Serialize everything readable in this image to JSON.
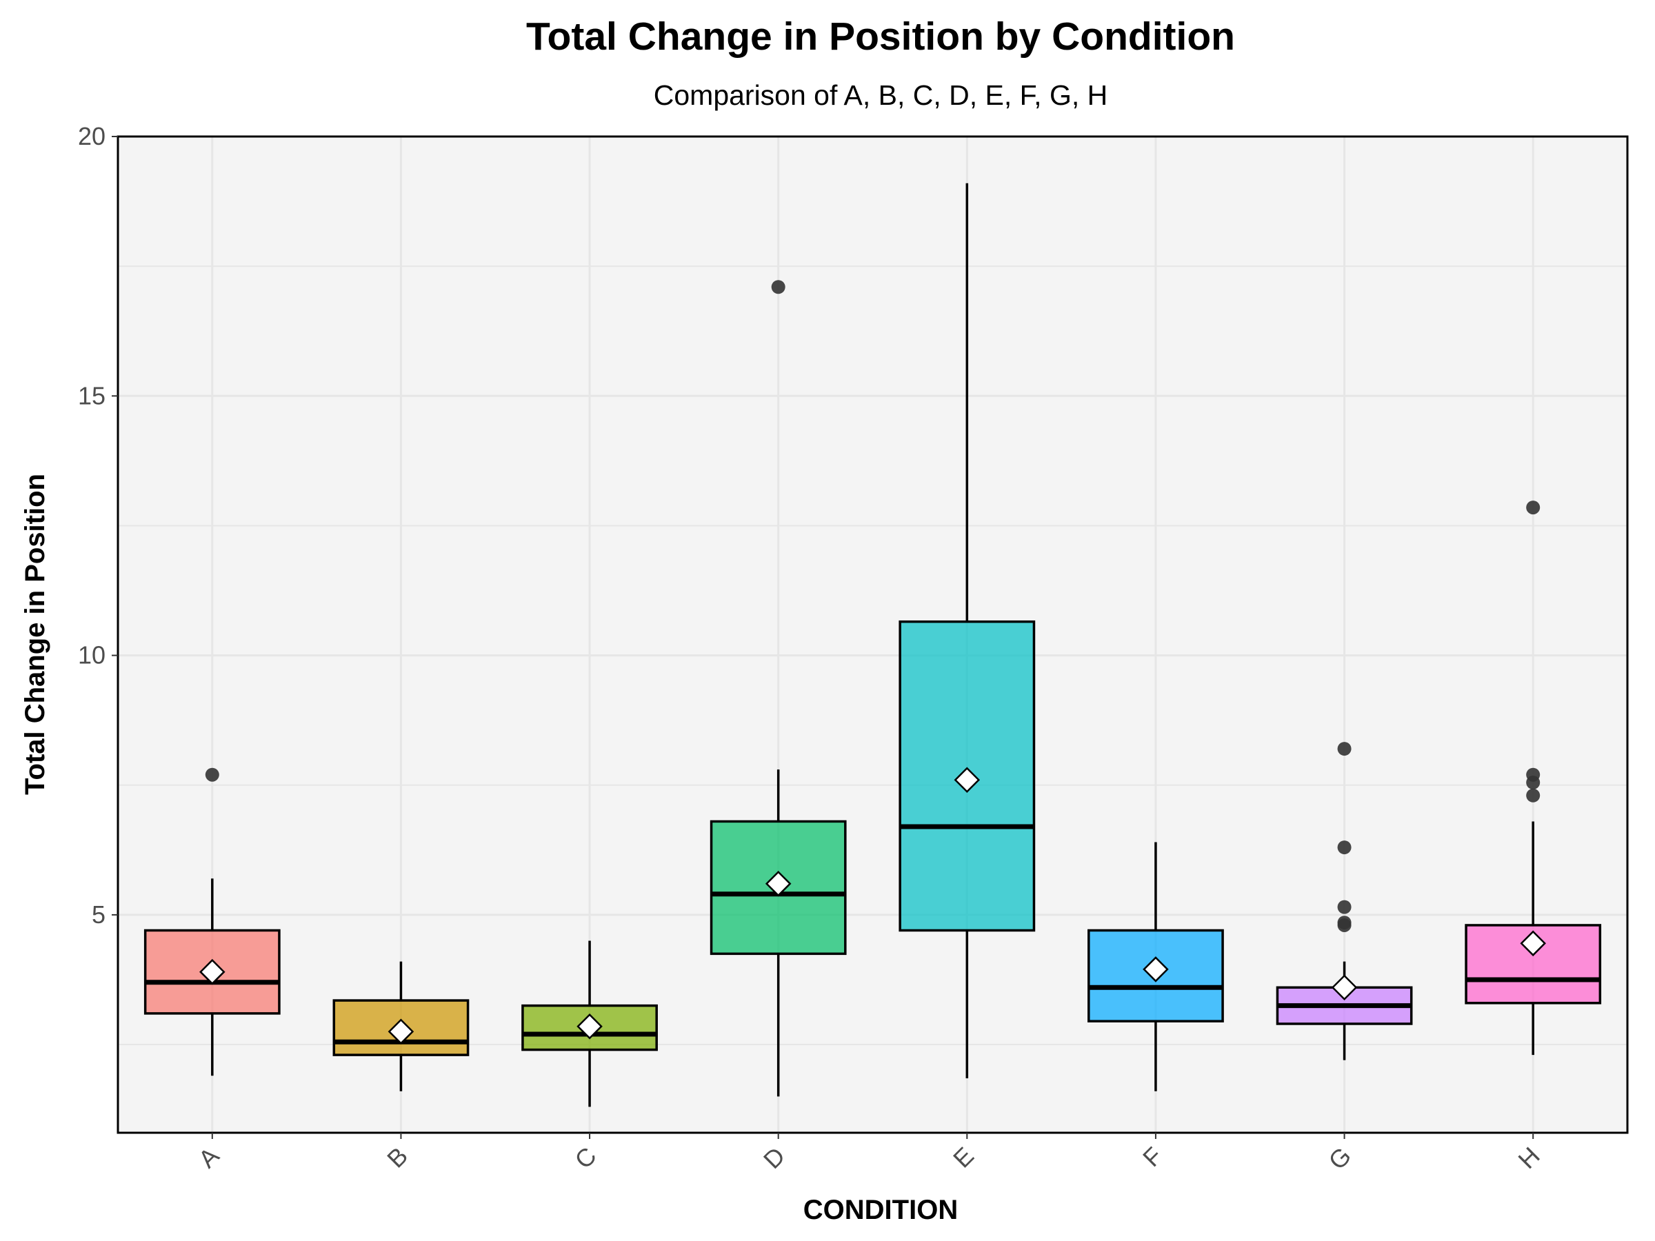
{
  "chart_data": {
    "type": "box",
    "title": "Total Change in Position by Condition",
    "subtitle": "Comparison of A, B, C, D, E, F, G, H",
    "xlabel": "CONDITION",
    "ylabel": "Total Change in Position",
    "ylim": [
      0.8,
      20
    ],
    "yticks": [
      5,
      10,
      15,
      20
    ],
    "grid": true,
    "categories": [
      "A",
      "B",
      "C",
      "D",
      "E",
      "F",
      "G",
      "H"
    ],
    "colors": [
      "#F8766D",
      "#CD9600",
      "#7CAE00",
      "#00BE67",
      "#00BFC4",
      "#00A9FF",
      "#C77CFF",
      "#FF61CC"
    ],
    "boxes": [
      {
        "name": "A",
        "whisker_low": 1.9,
        "q1": 3.1,
        "median": 3.7,
        "q3": 4.7,
        "whisker_high": 5.7,
        "mean": 3.9,
        "outliers": [
          7.7
        ]
      },
      {
        "name": "B",
        "whisker_low": 1.6,
        "q1": 2.3,
        "median": 2.55,
        "q3": 3.35,
        "whisker_high": 4.1,
        "mean": 2.75,
        "outliers": []
      },
      {
        "name": "C",
        "whisker_low": 1.3,
        "q1": 2.4,
        "median": 2.7,
        "q3": 3.25,
        "whisker_high": 4.5,
        "mean": 2.85,
        "outliers": []
      },
      {
        "name": "D",
        "whisker_low": 1.5,
        "q1": 4.25,
        "median": 5.4,
        "q3": 6.8,
        "whisker_high": 7.8,
        "mean": 5.6,
        "outliers": [
          17.1
        ]
      },
      {
        "name": "E",
        "whisker_low": 1.85,
        "q1": 4.7,
        "median": 6.7,
        "q3": 10.65,
        "whisker_high": 19.1,
        "mean": 7.6,
        "outliers": []
      },
      {
        "name": "F",
        "whisker_low": 1.6,
        "q1": 2.95,
        "median": 3.6,
        "q3": 4.7,
        "whisker_high": 6.4,
        "mean": 3.95,
        "outliers": []
      },
      {
        "name": "G",
        "whisker_low": 2.2,
        "q1": 2.9,
        "median": 3.25,
        "q3": 3.6,
        "whisker_high": 4.1,
        "mean": 3.6,
        "outliers": [
          4.8,
          4.85,
          5.15,
          6.3,
          8.2
        ]
      },
      {
        "name": "H",
        "whisker_low": 2.3,
        "q1": 3.3,
        "median": 3.75,
        "q3": 4.8,
        "whisker_high": 6.8,
        "mean": 4.45,
        "outliers": [
          7.3,
          7.55,
          7.7,
          12.85
        ]
      }
    ]
  }
}
